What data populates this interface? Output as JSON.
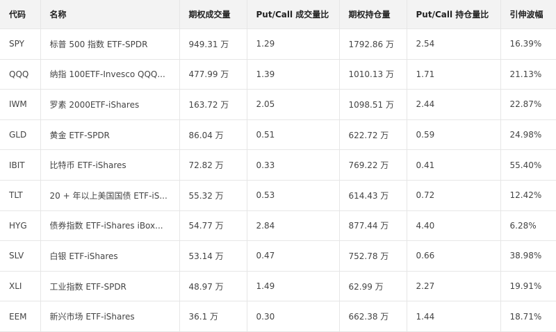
{
  "table": {
    "headers": [
      "代码",
      "名称",
      "期权成交量",
      "Put/Call 成交量比",
      "期权持仓量",
      "Put/Call 持仓量比",
      "引伸波幅"
    ],
    "rows": [
      [
        "SPY",
        "标普 500 指数 ETF-SPDR",
        "949.31 万",
        "1.29",
        "1792.86 万",
        "2.54",
        "16.39%"
      ],
      [
        "QQQ",
        "纳指 100ETF-Invesco QQQ...",
        "477.99 万",
        "1.39",
        "1010.13 万",
        "1.71",
        "21.13%"
      ],
      [
        "IWM",
        "罗素 2000ETF-iShares",
        "163.72 万",
        "2.05",
        "1098.51 万",
        "2.44",
        "22.87%"
      ],
      [
        "GLD",
        "黄金 ETF-SPDR",
        "86.04 万",
        "0.51",
        "622.72 万",
        "0.59",
        "24.98%"
      ],
      [
        "IBIT",
        "比特币 ETF-iShares",
        "72.82 万",
        "0.33",
        "769.22 万",
        "0.41",
        "55.40%"
      ],
      [
        "TLT",
        "20 + 年以上美国国债 ETF-iS...",
        "55.32 万",
        "0.53",
        "614.43 万",
        "0.72",
        "12.42%"
      ],
      [
        "HYG",
        "债券指数 ETF-iShares iBox...",
        "54.77 万",
        "2.84",
        "877.44 万",
        "4.40",
        "6.28%"
      ],
      [
        "SLV",
        "白银 ETF-iShares",
        "53.14 万",
        "0.47",
        "752.78 万",
        "0.66",
        "38.98%"
      ],
      [
        "XLI",
        "工业指数 ETF-SPDR",
        "48.97 万",
        "1.49",
        "62.99 万",
        "2.27",
        "19.91%"
      ],
      [
        "EEM",
        "新兴市场 ETF-iShares",
        "36.1 万",
        "0.30",
        "662.38 万",
        "1.44",
        "18.71%"
      ]
    ]
  }
}
